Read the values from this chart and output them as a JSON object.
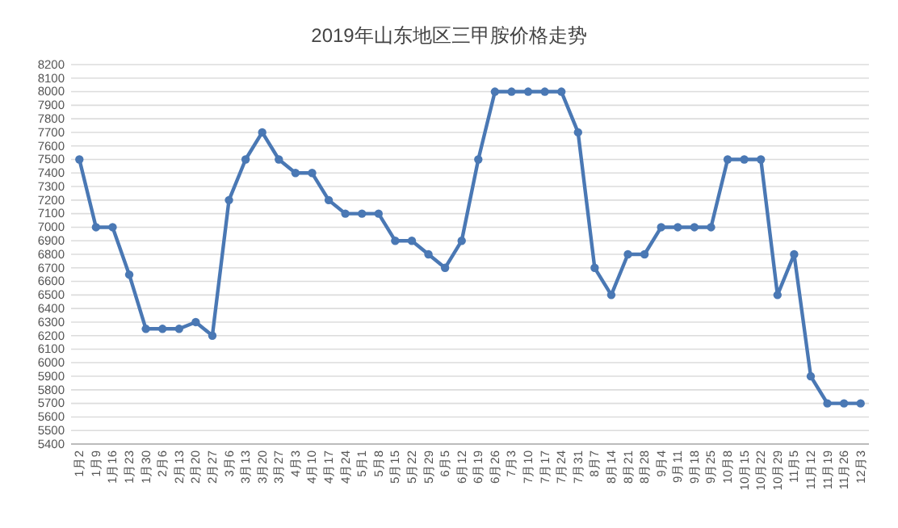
{
  "chart_data": {
    "type": "line",
    "title": "2019年山东地区三甲胺价格走势",
    "categories": [
      "1月2",
      "1月9",
      "1月16",
      "1月23",
      "1月30",
      "2月6",
      "2月13",
      "2月20",
      "2月27",
      "3月6",
      "3月13",
      "3月20",
      "3月27",
      "4月3",
      "4月10",
      "4月17",
      "4月24",
      "5月1",
      "5月8",
      "5月15",
      "5月22",
      "5月29",
      "6月5",
      "6月12",
      "6月19",
      "6月26",
      "7月3",
      "7月10",
      "7月17",
      "7月24",
      "7月31",
      "8月7",
      "8月14",
      "8月21",
      "8月28",
      "9月4",
      "9月11",
      "9月18",
      "9月25",
      "10月8",
      "10月15",
      "10月22",
      "10月29",
      "11月5",
      "11月12",
      "11月19",
      "11月26",
      "12月3"
    ],
    "series": [
      {
        "color": "#4a78b4",
        "values": [
          7500,
          7000,
          7000,
          6650,
          6250,
          6250,
          6250,
          6300,
          6200,
          7200,
          7500,
          7700,
          7500,
          7400,
          7400,
          7200,
          7100,
          7100,
          7100,
          6900,
          6900,
          6800,
          6700,
          6900,
          7500,
          8000,
          8000,
          8000,
          8000,
          8000,
          7700,
          6700,
          6500,
          6800,
          6800,
          7000,
          7000,
          7000,
          7000,
          7500,
          7500,
          7500,
          6500,
          6800,
          5900,
          5700,
          5700,
          5700
        ]
      }
    ],
    "ylim": [
      5400,
      8200
    ],
    "yticks": [
      5400,
      5500,
      5600,
      5700,
      5800,
      5900,
      6000,
      6100,
      6200,
      6300,
      6400,
      6500,
      6600,
      6700,
      6800,
      6900,
      7000,
      7100,
      7200,
      7300,
      7400,
      7500,
      7600,
      7700,
      7800,
      7900,
      8000,
      8100,
      8200
    ],
    "grid": "y",
    "marker": "circle",
    "line_style": "solid"
  }
}
